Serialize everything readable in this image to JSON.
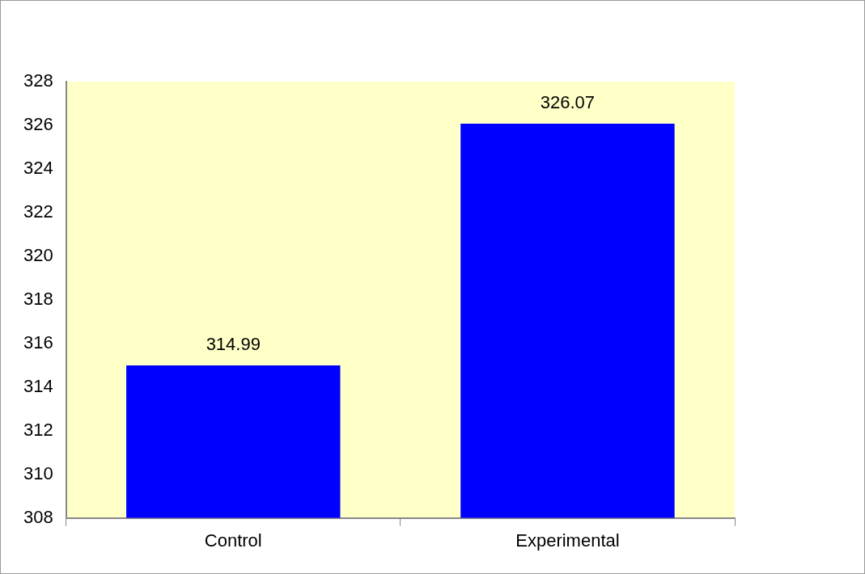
{
  "chart_data": {
    "type": "bar",
    "categories": [
      "Control",
      "Experimental"
    ],
    "values": [
      314.99,
      326.07
    ],
    "color": "#0000ff",
    "ylim": [
      308,
      328
    ],
    "yticks": [
      308,
      310,
      312,
      314,
      316,
      318,
      320,
      322,
      324,
      326,
      328
    ],
    "grid": false,
    "legend": false,
    "data_labels": true
  }
}
